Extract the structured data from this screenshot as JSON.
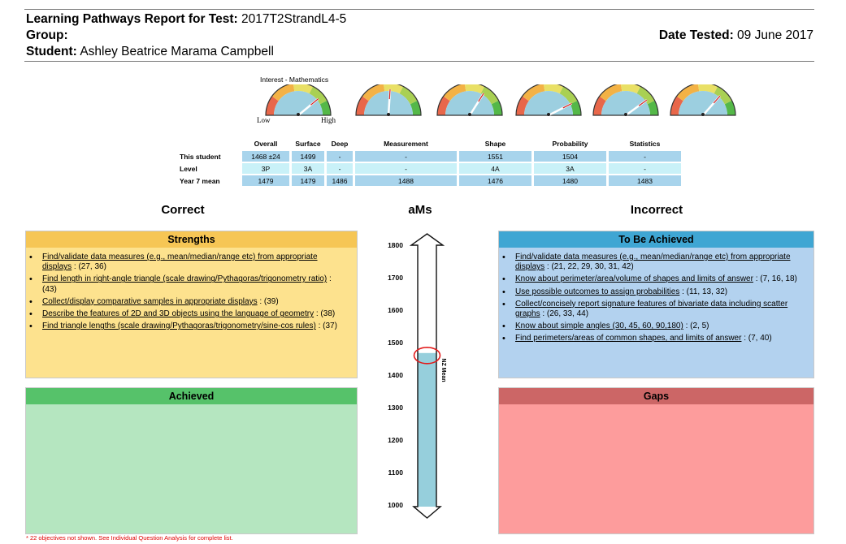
{
  "header": {
    "report_label": "Learning Pathways Report for Test:",
    "test_name": "2017T2StrandL4-5",
    "group_label": "Group:",
    "group_value": "",
    "student_label": "Student:",
    "student_name": "Ashley Beatrice Marama Campbell",
    "date_label": "Date Tested:",
    "date_value": "09 June 2017"
  },
  "gauges": {
    "title": "Interest - Mathematics",
    "low_label": "Low",
    "high_label": "High",
    "needles": [
      {
        "name": "interest",
        "level": 0.78
      },
      {
        "name": "overall",
        "level": 0.52
      },
      {
        "name": "measurement",
        "level": 0.68
      },
      {
        "name": "shape",
        "level": 0.85
      },
      {
        "name": "probability",
        "level": 0.8
      },
      {
        "name": "statistics",
        "level": 0.73
      }
    ]
  },
  "scores": {
    "columns": [
      "Overall",
      "Surface",
      "Deep",
      "Measurement",
      "Shape",
      "Probability",
      "Statistics"
    ],
    "rows": [
      {
        "label": "This student",
        "values": [
          "1468 ±24",
          "1499",
          "-",
          "-",
          "1551",
          "1504",
          "-"
        ]
      },
      {
        "label": "Level",
        "values": [
          "3P",
          "3A",
          "-",
          "-",
          "4A",
          "3A",
          "-"
        ]
      },
      {
        "label": "Year 7 mean",
        "values": [
          "1479",
          "1479",
          "1486",
          "1488",
          "1476",
          "1480",
          "1483"
        ]
      }
    ]
  },
  "sections": {
    "correct": "Correct",
    "ams": "aMs",
    "incorrect": "Incorrect"
  },
  "strengths": {
    "title": "Strengths",
    "items": [
      {
        "text": "Find/validate data measures (e.g., mean/median/range etc) from appropriate displays",
        "refs": " : (27, 36)"
      },
      {
        "text": "Find length in right-angle triangle (scale drawing/Pythagoras/trigonometry ratio)",
        "refs": " : (43)"
      },
      {
        "text": "Collect/display comparative samples in appropriate displays",
        "refs": " : (39)"
      },
      {
        "text": "Describe the features of 2D and 3D objects using the language of geometry",
        "refs": " : (38)"
      },
      {
        "text": "Find triangle lengths (scale drawing/Pythagoras/trigonometry/sine-cos rules)",
        "refs": " : (37)"
      }
    ]
  },
  "achieved": {
    "title": "Achieved"
  },
  "to_be_achieved": {
    "title": "To Be Achieved",
    "items": [
      {
        "text": "Find/validate data measures (e.g., mean/median/range etc) from appropriate displays",
        "refs": " : (21, 22, 29, 30, 31, 42)"
      },
      {
        "text": "Know about perimeter/area/volume of shapes and limits of answer",
        "refs": " : (7, 16, 18)"
      },
      {
        "text": "Use possible outcomes to assign probabilities",
        "refs": " : (11, 13, 32)"
      },
      {
        "text": "Collect/concisely report signature features of bivariate data including scatter graphs",
        "refs": " : (26, 33, 44)"
      },
      {
        "text": "Know about simple angles (30, 45, 60, 90,180)",
        "refs": " : (2, 5)"
      },
      {
        "text": "Find perimeters/areas of common shapes, and limits of answer",
        "refs": " : (7, 40)"
      }
    ]
  },
  "gaps": {
    "title": "Gaps"
  },
  "scale": {
    "ticks": [
      "1800",
      "1700",
      "1600",
      "1500",
      "1400",
      "1300",
      "1200",
      "1100",
      "1000"
    ],
    "min": 1000,
    "max": 1800,
    "student_score": 1468,
    "nz_mean_label": "NZ Mean"
  },
  "footnote": "* 22 objectives not shown. See Individual Question Analysis for complete list.",
  "colors": {
    "strengths_header": "#f6c655",
    "strengths_body": "#fde28e",
    "achieved_header": "#56c26a",
    "achieved_body": "#b5e6c0",
    "tba_header": "#3fa6d3",
    "tba_body": "#b3d2ef",
    "gaps_header": "#cc6666",
    "gaps_body": "#fd9c9c",
    "bar_fill": "#96cfdc"
  }
}
